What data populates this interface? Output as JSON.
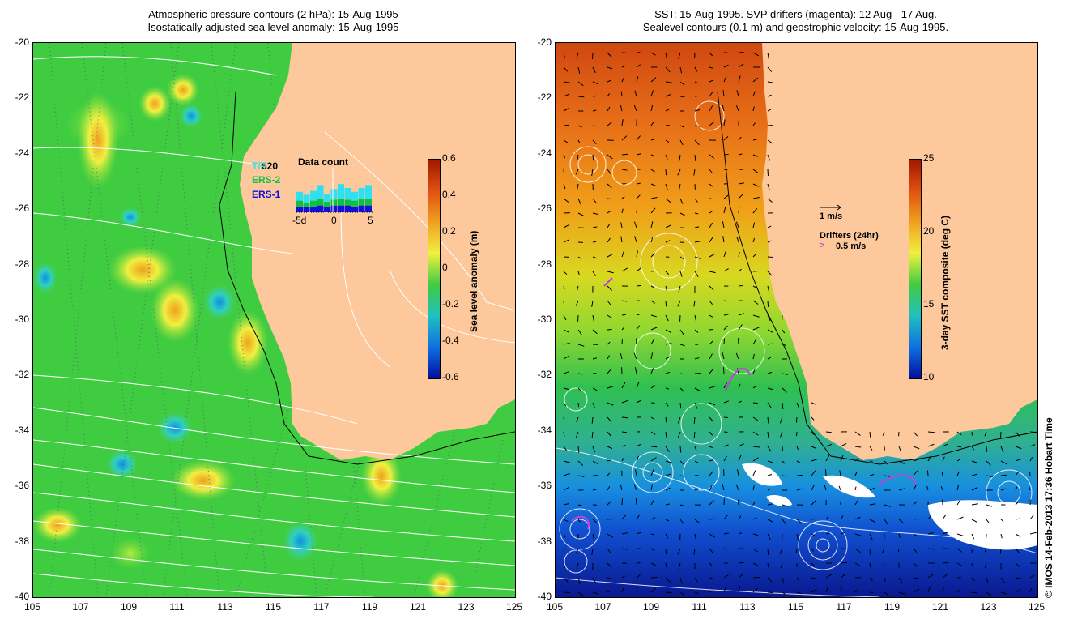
{
  "left": {
    "title_line1": "Atmospheric pressure contours (2 hPa): 15-Aug-1995",
    "title_line2": "Isostatically adjusted sea level anomaly: 15-Aug-1995",
    "colorbar_label": "Sea level anomaly (m)",
    "colorbar_ticks": [
      "0.6",
      "0.4",
      "0.2",
      "0",
      "-0.2",
      "-0.4",
      "-0.6"
    ],
    "inset": {
      "count": "620",
      "title": "Data count",
      "legend": [
        {
          "label": "T/P",
          "color": "#30e0f0"
        },
        {
          "label": "ERS-2",
          "color": "#10c040"
        },
        {
          "label": "ERS-1",
          "color": "#1010e0"
        }
      ],
      "x_ticks": [
        "-5d",
        "0",
        "5"
      ]
    }
  },
  "right": {
    "title_line1": "SST: 15-Aug-1995. SVP drifters (magenta): 12 Aug - 17 Aug.",
    "title_line2": "Sealevel contours (0.1 m) and geostrophic velocity: 15-Aug-1995.",
    "colorbar_label": "3-day SST composite (deg C)",
    "colorbar_ticks": [
      "25",
      "20",
      "15",
      "10"
    ],
    "vel_scale": "1 m/s",
    "drifters_label": "Drifters (24hr)",
    "drifters_scale": "0.5 m/s"
  },
  "y_ticks": [
    "-20",
    "-22",
    "-24",
    "-26",
    "-28",
    "-30",
    "-32",
    "-34",
    "-36",
    "-38",
    "-40"
  ],
  "x_ticks": [
    "105",
    "107",
    "109",
    "111",
    "113",
    "115",
    "117",
    "119",
    "121",
    "123",
    "125"
  ],
  "credit": "© IMOS 14-Feb-2013 17:36 Hobart Time",
  "colors": {
    "land": "#fcc89c",
    "slaCenter": "#38c838",
    "sstWarm": "#e06818"
  }
}
